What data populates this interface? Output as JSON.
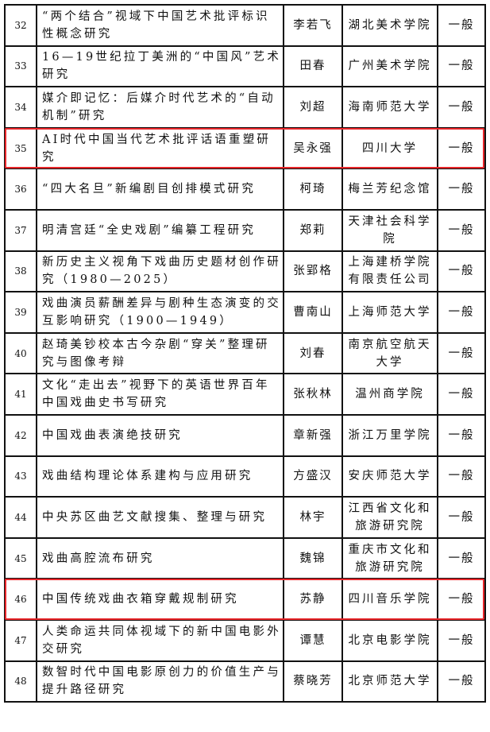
{
  "highlight_color": "#e8262a",
  "highlighted_rows": [
    "35",
    "46"
  ],
  "rows": [
    {
      "no": "32",
      "title": "“两个结合”视域下中国艺术批评标识性概念研究",
      "name": "李若飞",
      "inst": "湖北美术学院",
      "type": "一般"
    },
    {
      "no": "33",
      "title": "16—19世纪拉丁美洲的“中国风”艺术研究",
      "name": "田春",
      "inst": "广州美术学院",
      "type": "一般"
    },
    {
      "no": "34",
      "title": "媒介即记忆：后媒介时代艺术的“自动机制”研究",
      "name": "刘超",
      "inst": "海南师范大学",
      "type": "一般"
    },
    {
      "no": "35",
      "title": "AI时代中国当代艺术批评话语重塑研究",
      "name": "吴永强",
      "inst": "四川大学",
      "type": "一般"
    },
    {
      "no": "36",
      "title": "“四大名旦”新编剧目创排模式研究",
      "name": "柯琦",
      "inst": "梅兰芳纪念馆",
      "type": "一般"
    },
    {
      "no": "37",
      "title": "明清宫廷“全史戏剧”编纂工程研究",
      "name": "郑莉",
      "inst": "天津社会科学院",
      "type": "一般"
    },
    {
      "no": "38",
      "title": "新历史主义视角下戏曲历史题材创作研究（1980—2025）",
      "name": "张郢格",
      "inst": "上海建桥学院有限责任公司",
      "type": "一般"
    },
    {
      "no": "39",
      "title": "戏曲演员薪酬差异与剧种生态演变的交互影响研究（1900—1949）",
      "name": "曹南山",
      "inst": "上海师范大学",
      "type": "一般"
    },
    {
      "no": "40",
      "title": "赵琦美钞校本古今杂剧“穿关”整理研究与图像考辩",
      "name": "刘春",
      "inst": "南京航空航天大学",
      "type": "一般"
    },
    {
      "no": "41",
      "title": "文化“走出去”视野下的英语世界百年中国戏曲史书写研究",
      "name": "张秋林",
      "inst": "温州商学院",
      "type": "一般"
    },
    {
      "no": "42",
      "title": "中国戏曲表演绝技研究",
      "name": "章新强",
      "inst": "浙江万里学院",
      "type": "一般"
    },
    {
      "no": "43",
      "title": "戏曲结构理论体系建构与应用研究",
      "name": "方盛汉",
      "inst": "安庆师范大学",
      "type": "一般"
    },
    {
      "no": "44",
      "title": "中央苏区曲艺文献搜集、整理与研究",
      "name": "林宇",
      "inst": "江西省文化和旅游研究院",
      "type": "一般"
    },
    {
      "no": "45",
      "title": "戏曲高腔流布研究",
      "name": "魏锦",
      "inst": "重庆市文化和旅游研究院",
      "type": "一般"
    },
    {
      "no": "46",
      "title": "中国传统戏曲衣箱穿戴规制研究",
      "name": "苏静",
      "inst": "四川音乐学院",
      "type": "一般"
    },
    {
      "no": "47",
      "title": "人类命运共同体视域下的新中国电影外交研究",
      "name": "谭慧",
      "inst": "北京电影学院",
      "type": "一般"
    },
    {
      "no": "48",
      "title": "数智时代中国电影原创力的价值生产与提升路径研究",
      "name": "蔡晓芳",
      "inst": "北京师范大学",
      "type": "一般"
    }
  ]
}
